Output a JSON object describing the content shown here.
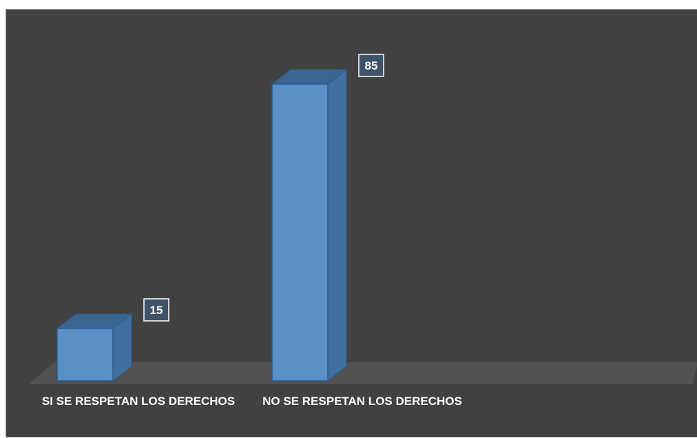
{
  "chart_data": {
    "type": "bar",
    "style": "3d-column",
    "categories": [
      "SI SE RESPETAN LOS DERECHOS",
      "NO SE RESPETAN LOS DERECHOS"
    ],
    "values": [
      15,
      85
    ],
    "data_labels": [
      "15",
      "85"
    ],
    "ylim": [
      0,
      100
    ],
    "grid": false,
    "legend": "none",
    "colors": {
      "background": "#414141",
      "floor": "#525051",
      "bar_front": "#5a8fc8",
      "bar_top": "#3b6591",
      "bar_side": "#416f9f",
      "bar_edge": "#2b5a8a",
      "label_box": "#3f5368",
      "label_text": "#ffffff"
    }
  }
}
